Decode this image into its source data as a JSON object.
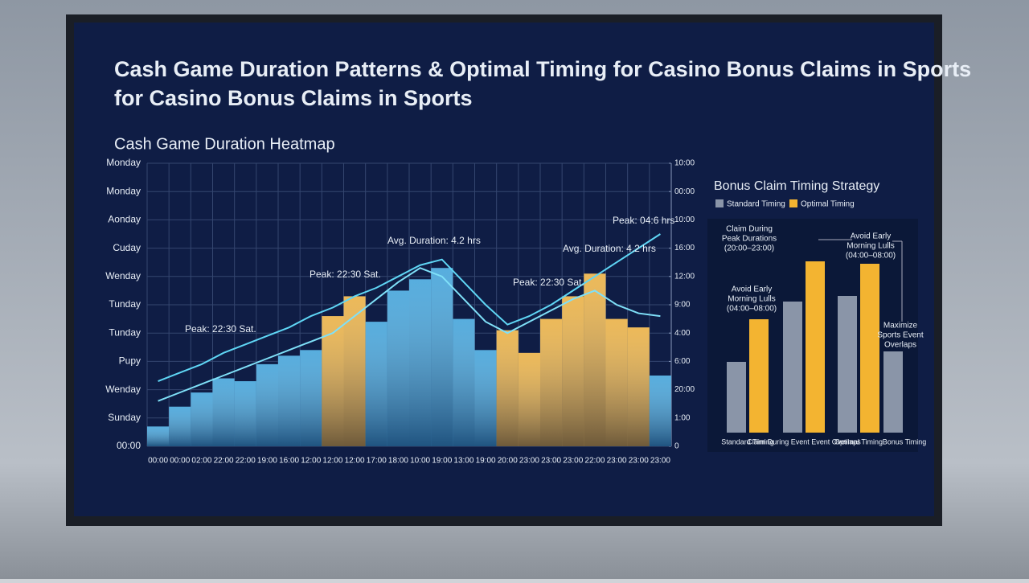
{
  "title": [
    "Cash Game Duration Patterns & Optimal Timing for Casino Bonus Claims in Sports",
    "for Casino Bonus Claims in Sports"
  ],
  "chart_data": [
    {
      "type": "bar",
      "title": "Cash Game Duration Heatmap",
      "categories": [
        "00:00",
        "00:00",
        "02:00",
        "22:00",
        "22:00",
        "19:00",
        "16:00",
        "12:00",
        "12:00",
        "12:00",
        "17:00",
        "18:00",
        "10:00",
        "19:00",
        "13:00",
        "19:00",
        "20:00",
        "23:00",
        "23:00",
        "23:00",
        "22:00",
        "23:00",
        "23:00",
        "23:00"
      ],
      "values": [
        0.7,
        1.4,
        1.9,
        2.4,
        2.3,
        2.9,
        3.2,
        3.4,
        4.6,
        5.3,
        4.4,
        5.5,
        5.9,
        6.3,
        4.5,
        3.4,
        4.1,
        3.3,
        4.5,
        5.3,
        6.1,
        4.5,
        4.2,
        2.5
      ],
      "colors": [
        "#3a9fd8",
        "#3a9fd8",
        "#3a9fd8",
        "#3a9fd8",
        "#3a9fd8",
        "#3a9fd8",
        "#3a9fd8",
        "#3a9fd8",
        "#e9ad3c",
        "#e9ad3c",
        "#3a9fd8",
        "#3a9fd8",
        "#3a9fd8",
        "#3a9fd8",
        "#3a9fd8",
        "#3a9fd8",
        "#e9ad3c",
        "#e9ad3c",
        "#e9ad3c",
        "#e9ad3c",
        "#e9ad3c",
        "#e9ad3c",
        "#e9ad3c",
        "#3a9fd8"
      ],
      "lines": [
        {
          "color": "#5fd6f5",
          "values": [
            2.3,
            2.6,
            2.9,
            3.3,
            3.6,
            3.9,
            4.2,
            4.6,
            4.9,
            5.3,
            5.6,
            6.0,
            6.4,
            6.6,
            5.8,
            5.0,
            4.3,
            4.6,
            5.0,
            5.5,
            6.0,
            6.5,
            7.0,
            7.5
          ]
        },
        {
          "color": "#7fe0f8",
          "values": [
            1.6,
            1.9,
            2.2,
            2.5,
            2.8,
            3.1,
            3.4,
            3.7,
            4.0,
            4.6,
            5.2,
            5.8,
            6.3,
            6.0,
            5.2,
            4.4,
            4.0,
            4.4,
            4.8,
            5.2,
            5.5,
            5.0,
            4.7,
            4.6
          ]
        }
      ],
      "annotations": [
        "Peak: 22:30 Sat.",
        "Peak: 22:30 Sat.",
        "Avg. Duration: 4.2 hrs",
        "Peak: 22:30 Sat.",
        "Avg. Duration: 4.2 hrs",
        "Peak: 04:6 hrs"
      ],
      "ylim": [
        0,
        10
      ],
      "yticks": [
        {
          "value": 0,
          "label": "00:00"
        },
        {
          "value": 1,
          "label": "Sunday"
        },
        {
          "value": 2,
          "label": "Wenday"
        },
        {
          "value": 3,
          "label": "Pupy"
        },
        {
          "value": 4,
          "label": "Tunday"
        },
        {
          "value": 5,
          "label": "Tunday"
        },
        {
          "value": 6,
          "label": "Wenday"
        },
        {
          "value": 7,
          "label": "Cuday"
        },
        {
          "value": 8,
          "label": "Aonday"
        },
        {
          "value": 9,
          "label": "Monday"
        },
        {
          "value": 10,
          "label": "Monday"
        }
      ],
      "y2lim": [
        0,
        10
      ],
      "y2ticks": [
        {
          "value": 0,
          "label": "0"
        },
        {
          "value": 1,
          "label": "1:00"
        },
        {
          "value": 2,
          "label": "20:00"
        },
        {
          "value": 3,
          "label": "6:00"
        },
        {
          "value": 4,
          "label": "4:00"
        },
        {
          "value": 5,
          "label": "9:00"
        },
        {
          "value": 6,
          "label": "12:00"
        },
        {
          "value": 7,
          "label": "16:00"
        },
        {
          "value": 8,
          "label": "10:00"
        },
        {
          "value": 9,
          "label": "00:00"
        },
        {
          "value": 10,
          "label": "10:00"
        }
      ],
      "grid": true
    },
    {
      "type": "grouped-bar",
      "title": "Bonus Claim Timing Strategy",
      "categories": [
        "Standard Timing",
        "Claim During Event Event Overlaps",
        "Optimal Timing",
        "Bonus Timing"
      ],
      "series": [
        {
          "name": "Standard Timing",
          "color": "#8a95a8",
          "values": [
            88,
            163,
            170,
            101
          ]
        },
        {
          "name": "Optimal Timing",
          "color": "#f3b431",
          "values": [
            141,
            213,
            210,
            null
          ]
        }
      ],
      "annotations": [
        [
          "Claim During",
          "Peak Durations",
          "(20:00–23:00)"
        ],
        [
          "Avoid Early",
          "Morning Lulls",
          "(04:00–08:00)"
        ],
        [
          "Avoid Early",
          "Morning Lulls",
          "(04:00–08:00)"
        ],
        [
          "Maximize",
          "Sports Event",
          "Overlaps"
        ]
      ],
      "ylim": [
        0,
        250
      ]
    }
  ]
}
